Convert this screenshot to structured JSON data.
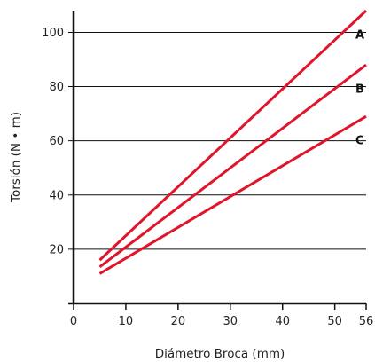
{
  "chart_data": {
    "type": "line",
    "title": "",
    "xlabel": "Diámetro Broca (mm)",
    "ylabel": "Torsión (N • m)",
    "xlim": [
      0,
      56
    ],
    "ylim": [
      0,
      108
    ],
    "x_ticks": [
      "0",
      "10",
      "20",
      "30",
      "40",
      "50",
      "56"
    ],
    "y_ticks": [
      "20",
      "40",
      "60",
      "80",
      "100"
    ],
    "grid": "horizontal",
    "colors": {
      "series": "#e0142b",
      "grid": "#111111",
      "axis": "#111111"
    },
    "series": [
      {
        "name": "A",
        "x": [
          5,
          56
        ],
        "y": [
          16,
          108
        ]
      },
      {
        "name": "B",
        "x": [
          5,
          56
        ],
        "y": [
          13.5,
          88
        ]
      },
      {
        "name": "C",
        "x": [
          5,
          56
        ],
        "y": [
          11,
          69
        ]
      }
    ]
  }
}
